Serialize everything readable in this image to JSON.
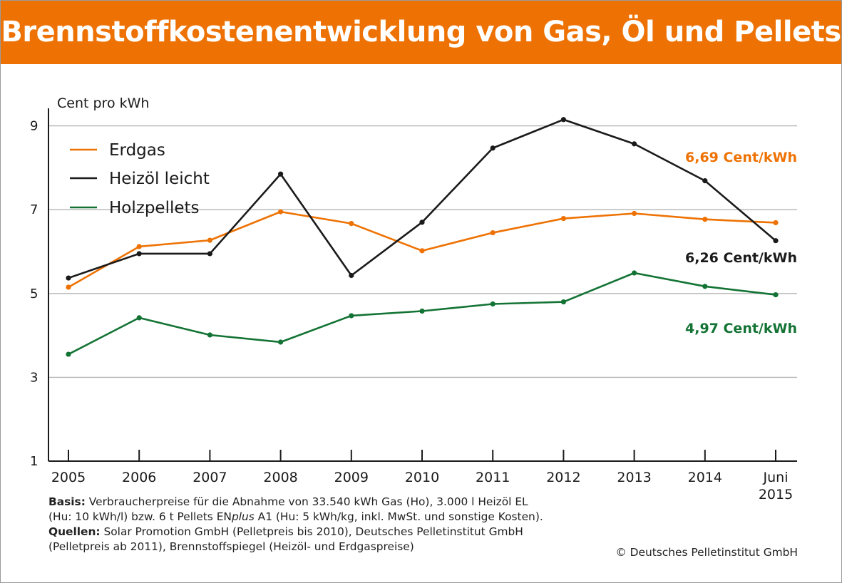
{
  "header": {
    "title": "Brennstoffkostenentwicklung von Gas, Öl und Pellets"
  },
  "chart_data": {
    "type": "line",
    "ylabel": "Cent pro kWh",
    "yticks": [
      1,
      3,
      5,
      7,
      9
    ],
    "ylim": [
      1,
      9.5
    ],
    "grid": true,
    "legend_position": "top-left",
    "categories": [
      "2005",
      "2006",
      "2007",
      "2008",
      "2009",
      "2010",
      "2011",
      "2012",
      "2013",
      "2014",
      "Juni 2015"
    ],
    "category_lines": [
      [
        "2005"
      ],
      [
        "2006"
      ],
      [
        "2007"
      ],
      [
        "2008"
      ],
      [
        "2009"
      ],
      [
        "2010"
      ],
      [
        "2011"
      ],
      [
        "2012"
      ],
      [
        "2013"
      ],
      [
        "2014"
      ],
      [
        "Juni",
        "2015"
      ]
    ],
    "series": [
      {
        "name": "Erdgas",
        "color": "#ee7203",
        "values": [
          5.15,
          6.12,
          6.27,
          6.95,
          6.67,
          6.02,
          6.45,
          6.79,
          6.91,
          6.77,
          6.69
        ],
        "end_label": "6,69 Cent/kWh"
      },
      {
        "name": "Heizöl leicht",
        "color": "#1a1a1a",
        "values": [
          5.37,
          5.95,
          5.95,
          7.85,
          5.43,
          6.7,
          8.47,
          9.15,
          8.57,
          7.69,
          6.26
        ],
        "end_label": "6,26 Cent/kWh"
      },
      {
        "name": "Holzpellets",
        "color": "#137334",
        "values": [
          3.55,
          4.42,
          4.01,
          3.84,
          4.47,
          4.58,
          4.75,
          4.8,
          5.49,
          5.17,
          4.97
        ],
        "end_label": "4,97 Cent/kWh"
      }
    ]
  },
  "notes": {
    "basis_label": "Basis:",
    "basis_line1": "Verbraucherpreise für die Abnahme von 33.540 kWh Gas (Ho), 3.000 l Heizöl EL",
    "basis_line2_pre": "(Hu: 10 kWh/l) bzw. 6 t Pellets EN",
    "basis_line2_italic": "plus",
    "basis_line2_post": " A1 (Hu: 5 kWh/kg, inkl. MwSt. und sonstige Kosten).",
    "sources_label": "Quellen:",
    "sources_line1": "Solar Promotion GmbH (Pelletpreis bis 2010), Deutsches Pelletinstitut GmbH",
    "sources_line2": "(Pelletpreis ab 2011), Brennstoffspiegel (Heizöl- und Erdgaspreise)"
  },
  "copyright": "© Deutsches Pelletinstitut GmbH"
}
